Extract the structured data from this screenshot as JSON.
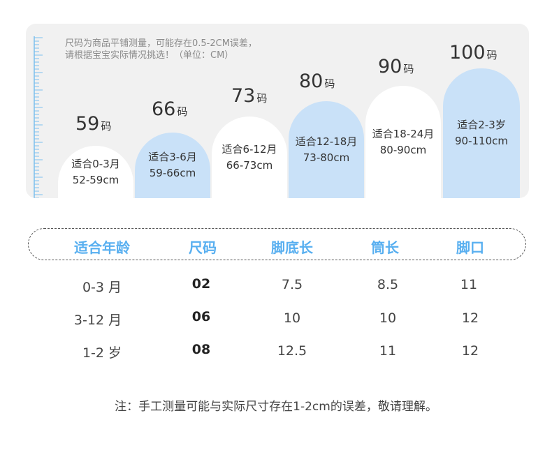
{
  "note": {
    "line1": "尺码为商品平铺测量，可能存在0.5-2CM误差，",
    "line2": "请根据宝宝实际情况挑选！（单位：CM）"
  },
  "sizes": [
    {
      "size": "59",
      "unit": "码",
      "age": "适合0-3月",
      "range": "52-59cm",
      "style": "white"
    },
    {
      "size": "66",
      "unit": "码",
      "age": "适合3-6月",
      "range": "59-66cm",
      "style": "blue"
    },
    {
      "size": "73",
      "unit": "码",
      "age": "适合6-12月",
      "range": "66-73cm",
      "style": "white"
    },
    {
      "size": "80",
      "unit": "码",
      "age": "适合12-18月",
      "range": "73-80cm",
      "style": "blue"
    },
    {
      "size": "90",
      "unit": "码",
      "age": "适合18-24月",
      "range": "80-90cm",
      "style": "white"
    },
    {
      "size": "100",
      "unit": "码",
      "age": "适合2-3岁",
      "range": "90-110cm",
      "style": "blue"
    }
  ],
  "table": {
    "headers": [
      "适合年龄",
      "尺码",
      "脚底长",
      "筒长",
      "脚口"
    ],
    "rows": [
      [
        "0-3 月",
        "02",
        "7.5",
        "8.5",
        "11"
      ],
      [
        "3-12 月",
        "06",
        "10",
        "10",
        "12"
      ],
      [
        "1-2 岁",
        "08",
        "12.5",
        "11",
        "12"
      ]
    ]
  },
  "footer": "注：手工测量可能与实际尺寸存在1-2cm的误差，敬请理解。",
  "colors": {
    "accent": "#58aff0",
    "arch_blue": "#c9e1f8",
    "panel": "#f1f1f1"
  }
}
